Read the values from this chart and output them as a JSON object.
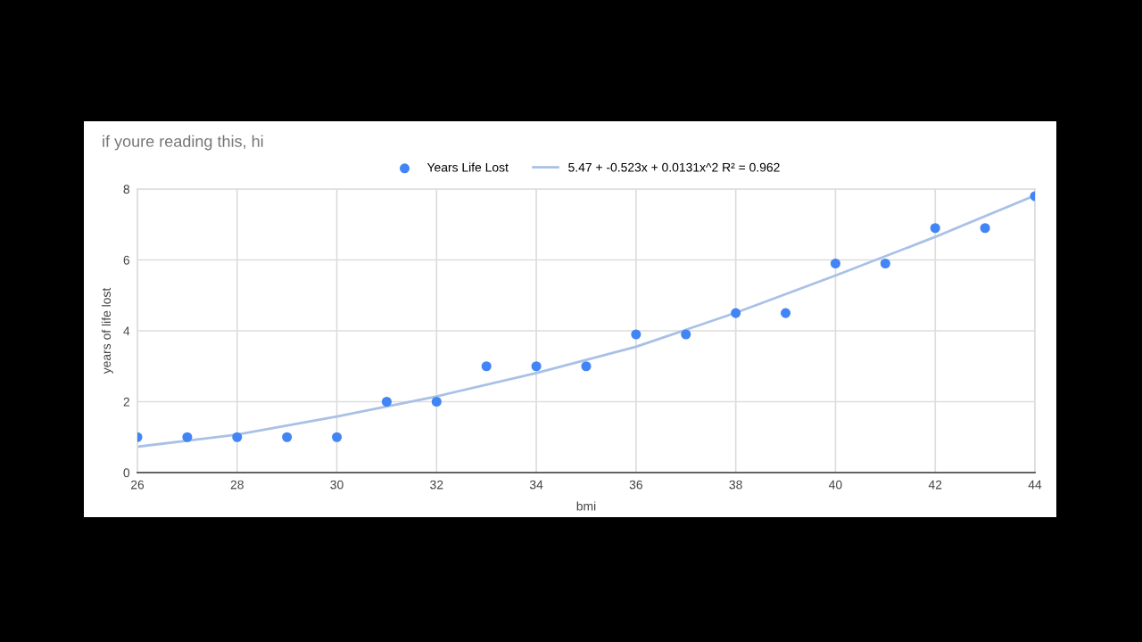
{
  "chart_data": {
    "type": "scatter",
    "title": "if youre reading this, hi",
    "xlabel": "bmi",
    "ylabel": "years of life lost",
    "series": [
      {
        "name": "Years Life Lost",
        "color": "#4285f4",
        "x": [
          26,
          27,
          28,
          29,
          30,
          31,
          32,
          33,
          34,
          35,
          36,
          37,
          38,
          39,
          40,
          41,
          42,
          43,
          44
        ],
        "values": [
          1,
          1,
          1,
          1,
          1,
          2,
          2,
          3,
          3,
          3,
          3.9,
          3.9,
          4.5,
          4.5,
          5.9,
          5.9,
          6.9,
          6.9,
          7.8
        ]
      },
      {
        "name": "5.47 + -0.523x + 0.0131x^2 R² = 0.962",
        "type": "line",
        "marker": "none",
        "color": "#a9c1e6",
        "x": [
          26,
          28,
          30,
          32,
          34,
          36,
          38,
          40,
          42,
          44
        ],
        "values": [
          0.73,
          1.07,
          1.58,
          2.15,
          2.81,
          3.55,
          4.51,
          5.56,
          6.65,
          7.82
        ]
      }
    ],
    "xlim": [
      26,
      44
    ],
    "xticks": [
      26,
      28,
      30,
      32,
      34,
      36,
      38,
      40,
      42,
      44
    ],
    "ylim": [
      0,
      8
    ],
    "yticks": [
      0,
      2,
      4,
      6,
      8
    ],
    "grid": true,
    "legend": "top",
    "marker": "circle"
  }
}
